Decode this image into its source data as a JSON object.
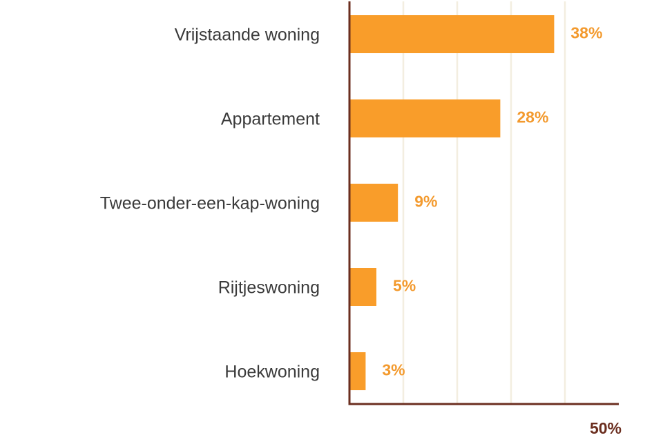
{
  "chart_data": {
    "type": "bar",
    "orientation": "horizontal",
    "categories": [
      "Vrijstaande woning",
      "Appartement",
      "Twee-onder-een-kap-woning",
      "Rijtjeswoning",
      "Hoekwoning"
    ],
    "values": [
      38,
      28,
      9,
      5,
      3
    ],
    "value_labels": [
      "38%",
      "28%",
      "9%",
      "5%",
      "3%"
    ],
    "xlim": [
      0,
      50
    ],
    "x_gridlines": [
      10,
      20,
      30,
      40
    ],
    "x_tick_labels": [
      {
        "value": 50,
        "label": "50%"
      }
    ],
    "grid": true,
    "legend": "none",
    "title": "",
    "xlabel": "",
    "ylabel": "",
    "colors": {
      "bar": "#f99d2a",
      "value_label": "#f39a2e",
      "axis": "#6b2e1f",
      "tick_label": "#6b2e1f",
      "grid": "#f3eee0",
      "category_label": "#3a3a3a"
    }
  }
}
